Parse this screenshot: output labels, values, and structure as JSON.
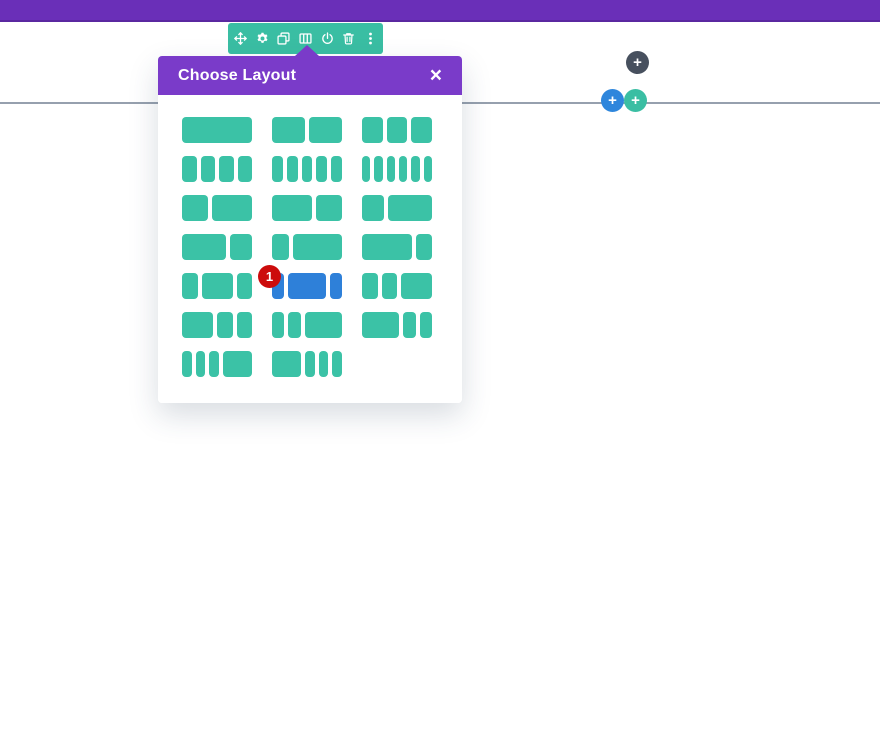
{
  "colors": {
    "purple-bar": "#6A2FB8",
    "purple-bar-edge": "#5A28A0",
    "purple-header": "#7A3BC9",
    "teal": "#3ABEA3",
    "teal-block": "#3BC2A6",
    "blue": "#2E80D9",
    "blue-circle": "#2E86DC",
    "red": "#CC0C0C",
    "dark": "#47505E",
    "line": "#96A0AE"
  },
  "toolbar": {
    "icons": [
      "move",
      "settings",
      "duplicate",
      "columns",
      "disable",
      "delete",
      "options"
    ]
  },
  "modal": {
    "title": "Choose Layout",
    "close_glyph": "×",
    "layouts": [
      {
        "label": "1",
        "weights": [
          1
        ],
        "selected": false
      },
      {
        "label": "1/2 1/2",
        "weights": [
          1,
          1
        ],
        "selected": false
      },
      {
        "label": "1/3 1/3 1/3",
        "weights": [
          1,
          1,
          1
        ],
        "selected": false
      },
      {
        "label": "1/4 1/4 1/4 1/4",
        "weights": [
          1,
          1,
          1,
          1
        ],
        "selected": false
      },
      {
        "label": "1/5 1/5 1/5 1/5 1/5",
        "weights": [
          1,
          1,
          1,
          1,
          1
        ],
        "selected": false
      },
      {
        "label": "1/6 1/6 1/6 1/6 1/6 1/6",
        "weights": [
          1,
          1,
          1,
          1,
          1,
          1
        ],
        "selected": false
      },
      {
        "label": "2/5 3/5",
        "weights": [
          2,
          3
        ],
        "selected": false
      },
      {
        "label": "3/5 2/5",
        "weights": [
          3,
          2
        ],
        "selected": false
      },
      {
        "label": "1/3 2/3",
        "weights": [
          1,
          2
        ],
        "selected": false
      },
      {
        "label": "2/3 1/3",
        "weights": [
          2,
          1
        ],
        "selected": false
      },
      {
        "label": "1/4 3/4",
        "weights": [
          1,
          3
        ],
        "selected": false
      },
      {
        "label": "3/4 1/4",
        "weights": [
          3,
          1
        ],
        "selected": false
      },
      {
        "label": "1/4 1/2 1/4",
        "weights": [
          1,
          2,
          1
        ],
        "selected": false
      },
      {
        "label": "1/5 3/5 1/5",
        "weights": [
          1,
          3,
          1
        ],
        "selected": true
      },
      {
        "label": "1/4 1/4 1/2",
        "weights": [
          1,
          1,
          2
        ],
        "selected": false
      },
      {
        "label": "1/2 1/4 1/4",
        "weights": [
          2,
          1,
          1
        ],
        "selected": false
      },
      {
        "label": "1/5 1/5 3/5",
        "weights": [
          1,
          1,
          3
        ],
        "selected": false
      },
      {
        "label": "3/5 1/5 1/5",
        "weights": [
          3,
          1,
          1
        ],
        "selected": false
      },
      {
        "label": "1/6 1/6 1/6 1/2",
        "weights": [
          1,
          1,
          1,
          3
        ],
        "selected": false
      },
      {
        "label": "1/2 1/6 1/6 1/6",
        "weights": [
          3,
          1,
          1,
          1
        ],
        "selected": false
      }
    ]
  },
  "annotation": {
    "step_number": "1"
  },
  "buttons": {
    "add_module": {
      "glyph": "+"
    },
    "add_section": {
      "glyph": "+"
    },
    "add_row": {
      "glyph": "+"
    }
  }
}
